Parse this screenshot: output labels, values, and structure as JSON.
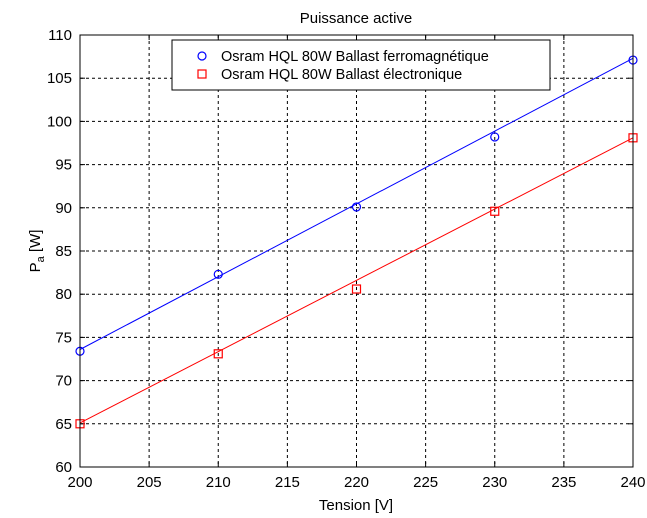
{
  "chart_data": {
    "type": "line",
    "title": "Puissance active",
    "xlabel": "Tension  [V]",
    "ylabel_main": "P",
    "ylabel_sub": "a",
    "ylabel_unit": " [W]",
    "xlim": [
      200,
      240
    ],
    "ylim": [
      60,
      110
    ],
    "xticks": [
      200,
      205,
      210,
      215,
      220,
      225,
      230,
      235,
      240
    ],
    "yticks": [
      60,
      65,
      70,
      75,
      80,
      85,
      90,
      95,
      100,
      105,
      110
    ],
    "grid": true,
    "legend_position": "top-center",
    "x": [
      200,
      210,
      220,
      230,
      240
    ],
    "series": [
      {
        "name": "Osram HQL 80W Ballast ferromagnétique",
        "marker": "circle",
        "color": "#0000ff",
        "values": [
          73.4,
          82.3,
          90.1,
          98.2,
          107.1
        ],
        "fit": [
          73.6,
          107.3
        ]
      },
      {
        "name": "Osram HQL 80W Ballast électronique",
        "marker": "square",
        "color": "#ff0000",
        "values": [
          65.0,
          73.1,
          80.6,
          89.6,
          98.1
        ],
        "fit": [
          65.1,
          98.1
        ]
      }
    ]
  }
}
